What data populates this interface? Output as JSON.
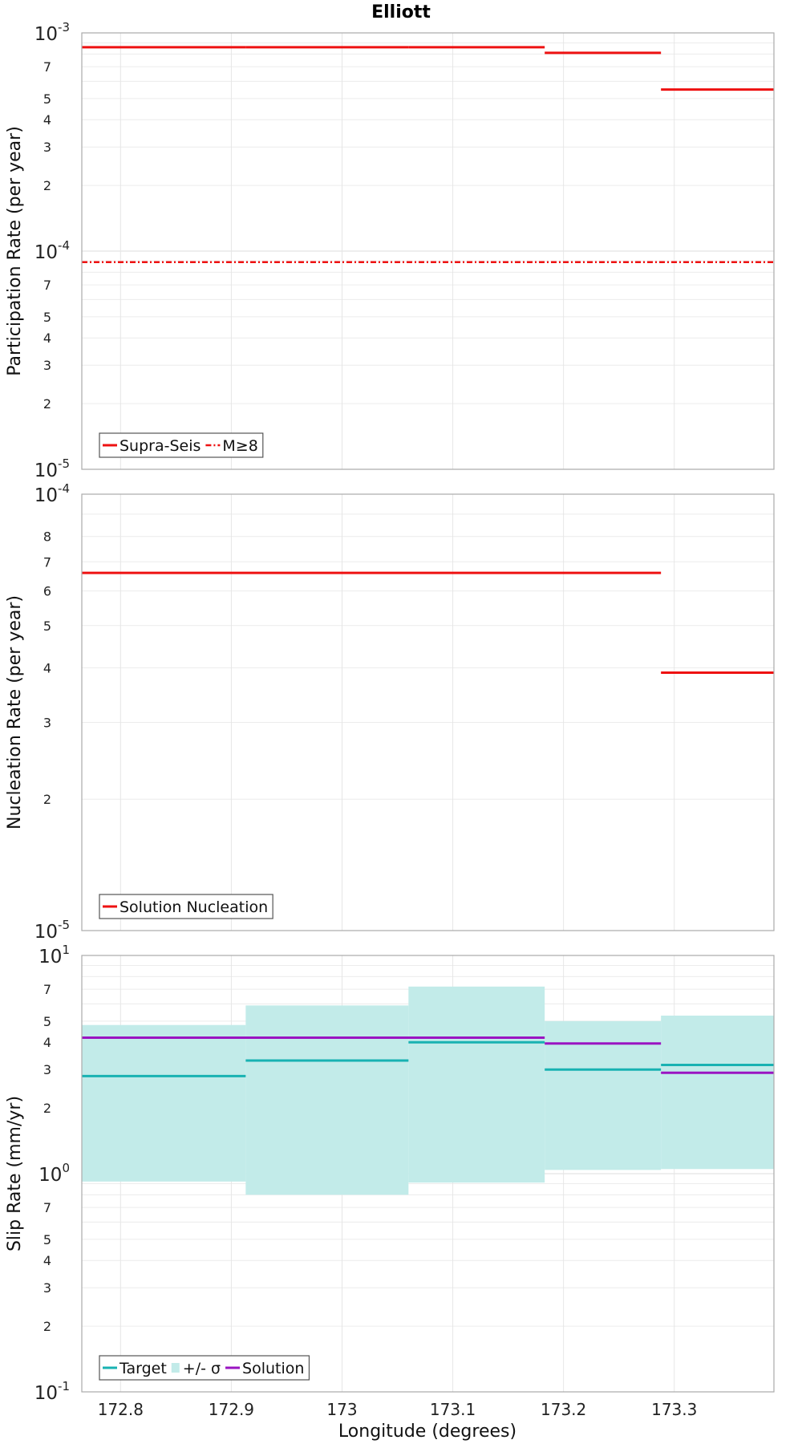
{
  "title": "Elliott",
  "xlabel": "Longitude (degrees)",
  "x_ticks": [
    "172.8",
    "172.9",
    "173",
    "173.1",
    "173.2",
    "173.3"
  ],
  "x_tick_values": [
    172.8,
    172.9,
    173.0,
    173.1,
    173.2,
    173.3
  ],
  "xlim": [
    172.765,
    173.39
  ],
  "colors": {
    "red": "#ee1111",
    "teal": "#18b2b2",
    "band": "#c2ebe9",
    "purple": "#9a14c2"
  },
  "chart_data": [
    {
      "type": "line",
      "ylabel": "Participation Rate (per year)",
      "yscale": "log",
      "ylim": [
        1e-05,
        0.001
      ],
      "decade_labels": [
        {
          "base": "10",
          "exp": "-3"
        },
        {
          "base": "10",
          "exp": "-4"
        },
        {
          "base": "10",
          "exp": "-5"
        }
      ],
      "minor_ticks": [
        "7",
        "5",
        "4",
        "3",
        "2"
      ],
      "legend": {
        "placement": "bottom-left",
        "items": [
          "Supra-Seis",
          "M≥8"
        ]
      },
      "series": [
        {
          "name": "Supra-Seis",
          "style": "solid",
          "color": "red",
          "segments": [
            {
              "x0": 172.765,
              "x1": 172.913,
              "y": 0.00086
            },
            {
              "x0": 172.913,
              "x1": 173.06,
              "y": 0.00086
            },
            {
              "x0": 173.06,
              "x1": 173.183,
              "y": 0.00086
            },
            {
              "x0": 173.183,
              "x1": 173.288,
              "y": 0.00081
            },
            {
              "x0": 173.288,
              "x1": 173.39,
              "y": 0.00055
            }
          ]
        },
        {
          "name": "M≥8",
          "style": "dashdot",
          "color": "red",
          "segments": [
            {
              "x0": 172.765,
              "x1": 173.39,
              "y": 8.9e-05
            }
          ]
        }
      ]
    },
    {
      "type": "line",
      "ylabel": "Nucleation Rate (per year)",
      "yscale": "log",
      "ylim": [
        1e-05,
        0.0001
      ],
      "decade_labels": [
        {
          "base": "10",
          "exp": "-4"
        },
        {
          "base": "10",
          "exp": "-5"
        }
      ],
      "minor_ticks": [
        "8",
        "7",
        "6",
        "5",
        "4",
        "3",
        "2"
      ],
      "legend": {
        "placement": "bottom-left",
        "items": [
          "Solution Nucleation"
        ]
      },
      "series": [
        {
          "name": "Solution Nucleation",
          "style": "solid",
          "color": "red",
          "segments": [
            {
              "x0": 172.765,
              "x1": 173.288,
              "y": 6.6e-05
            },
            {
              "x0": 173.288,
              "x1": 173.39,
              "y": 3.9e-05
            }
          ]
        }
      ]
    },
    {
      "type": "line",
      "ylabel": "Slip Rate (mm/yr)",
      "yscale": "log",
      "ylim": [
        0.1,
        10
      ],
      "decade_labels": [
        {
          "base": "10",
          "exp": "1"
        },
        {
          "base": "10",
          "exp": "0"
        },
        {
          "base": "10",
          "exp": "-1"
        }
      ],
      "minor_ticks": [
        "7",
        "5",
        "4",
        "3",
        "2"
      ],
      "legend": {
        "placement": "bottom-left",
        "items": [
          "Target",
          "+/- σ",
          "Solution"
        ]
      },
      "bands": [
        {
          "x0": 172.765,
          "x1": 172.913,
          "low": 0.92,
          "high": 4.8
        },
        {
          "x0": 172.913,
          "x1": 173.06,
          "low": 0.8,
          "high": 5.9
        },
        {
          "x0": 173.06,
          "x1": 173.183,
          "low": 0.91,
          "high": 7.2
        },
        {
          "x0": 173.183,
          "x1": 173.288,
          "low": 1.04,
          "high": 5.0
        },
        {
          "x0": 173.288,
          "x1": 173.39,
          "low": 1.05,
          "high": 5.3
        }
      ],
      "series": [
        {
          "name": "Target",
          "style": "solid",
          "color": "teal",
          "segments": [
            {
              "x0": 172.765,
              "x1": 172.913,
              "y": 2.8
            },
            {
              "x0": 172.913,
              "x1": 173.06,
              "y": 3.3
            },
            {
              "x0": 173.06,
              "x1": 173.183,
              "y": 4.0
            },
            {
              "x0": 173.183,
              "x1": 173.288,
              "y": 3.0
            },
            {
              "x0": 173.288,
              "x1": 173.39,
              "y": 3.15
            }
          ]
        },
        {
          "name": "Solution",
          "style": "solid",
          "color": "purple",
          "segments": [
            {
              "x0": 172.765,
              "x1": 173.183,
              "y": 4.2
            },
            {
              "x0": 173.183,
              "x1": 173.288,
              "y": 3.95
            },
            {
              "x0": 173.288,
              "x1": 173.39,
              "y": 2.9
            }
          ]
        }
      ]
    }
  ]
}
